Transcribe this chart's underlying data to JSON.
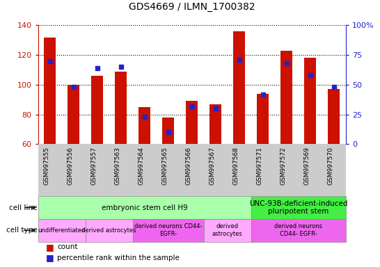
{
  "title": "GDS4669 / ILMN_1700382",
  "samples": [
    "GSM997555",
    "GSM997556",
    "GSM997557",
    "GSM997563",
    "GSM997564",
    "GSM997565",
    "GSM997566",
    "GSM997567",
    "GSM997568",
    "GSM997571",
    "GSM997572",
    "GSM997569",
    "GSM997570"
  ],
  "counts": [
    132,
    100,
    106,
    109,
    85,
    78,
    89,
    87,
    136,
    94,
    123,
    118,
    97
  ],
  "percentiles": [
    70,
    48,
    64,
    65,
    23,
    10,
    32,
    30,
    71,
    42,
    68,
    58,
    48
  ],
  "ylim_left": [
    60,
    140
  ],
  "ylim_right": [
    0,
    100
  ],
  "yticks_left": [
    60,
    80,
    100,
    120,
    140
  ],
  "yticks_right": [
    0,
    25,
    50,
    75,
    100
  ],
  "bar_color": "#cc1100",
  "percentile_color": "#2222cc",
  "chart_bg": "#ffffff",
  "xlabel_bg": "#cccccc",
  "cell_line_groups": [
    {
      "label": "embryonic stem cell H9",
      "start": 0,
      "end": 9,
      "color": "#aaffaa"
    },
    {
      "label": "UNC-93B-deficient-induced\npluripotent stem",
      "start": 9,
      "end": 13,
      "color": "#44ee44"
    }
  ],
  "cell_type_groups": [
    {
      "label": "undifferentiated",
      "start": 0,
      "end": 2,
      "color": "#ffaaff"
    },
    {
      "label": "derived astrocytes",
      "start": 2,
      "end": 4,
      "color": "#ffaaff"
    },
    {
      "label": "derived neurons CD44-\nEGFR-",
      "start": 4,
      "end": 7,
      "color": "#ee66ee"
    },
    {
      "label": "derived\nastrocytes",
      "start": 7,
      "end": 9,
      "color": "#ffaaff"
    },
    {
      "label": "derived neurons\nCD44- EGFR-",
      "start": 9,
      "end": 13,
      "color": "#ee66ee"
    }
  ]
}
